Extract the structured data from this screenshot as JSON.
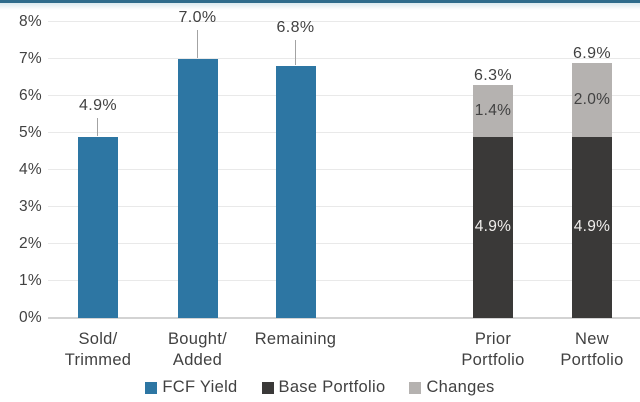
{
  "chart_data": {
    "type": "bar",
    "title": "",
    "xlabel": "",
    "ylabel": "",
    "ylim": [
      0,
      8
    ],
    "grid": true,
    "legend_position": "bottom",
    "ytick_labels": [
      "0%",
      "1%",
      "2%",
      "3%",
      "4%",
      "5%",
      "6%",
      "7%",
      "8%"
    ],
    "categories": [
      "Sold/ Trimmed",
      "Bought/ Added",
      "Remaining",
      "Prior Portfolio",
      "New Portfolio"
    ],
    "series": [
      {
        "name": "FCF Yield",
        "color": "#2d76a3"
      },
      {
        "name": "Base Portfolio",
        "color": "#3a3938"
      },
      {
        "name": "Changes",
        "color": "#b5b2b0"
      }
    ],
    "bars": [
      {
        "category_lines": [
          "Sold/",
          "Trimmed"
        ],
        "total_label": "4.9%",
        "segments": [
          {
            "series": "FCF Yield",
            "value": 4.9
          }
        ]
      },
      {
        "category_lines": [
          "Bought/",
          "Added"
        ],
        "total_label": "7.0%",
        "segments": [
          {
            "series": "FCF Yield",
            "value": 7.0
          }
        ]
      },
      {
        "category_lines": [
          "Remaining"
        ],
        "total_label": "6.8%",
        "segments": [
          {
            "series": "FCF Yield",
            "value": 6.8
          }
        ]
      },
      {
        "category_lines": [
          "Prior",
          "Portfolio"
        ],
        "total_label": "6.3%",
        "segments": [
          {
            "series": "Base Portfolio",
            "value": 4.9,
            "inside_label": "4.9%"
          },
          {
            "series": "Changes",
            "value": 1.4,
            "inside_label": "1.4%"
          }
        ]
      },
      {
        "category_lines": [
          "New",
          "Portfolio"
        ],
        "total_label": "6.9%",
        "segments": [
          {
            "series": "Base Portfolio",
            "value": 4.9,
            "inside_label": "4.9%"
          },
          {
            "series": "Changes",
            "value": 2.0,
            "inside_label": "2.0%"
          }
        ]
      }
    ]
  },
  "colors": {
    "grid": "#e9e9e9",
    "axis": "#d3d3d3",
    "text": "#414141",
    "inside_dark_text": "#f0eeec",
    "leader": "#a3a3a3",
    "top_strip": "#2e6b8c"
  }
}
